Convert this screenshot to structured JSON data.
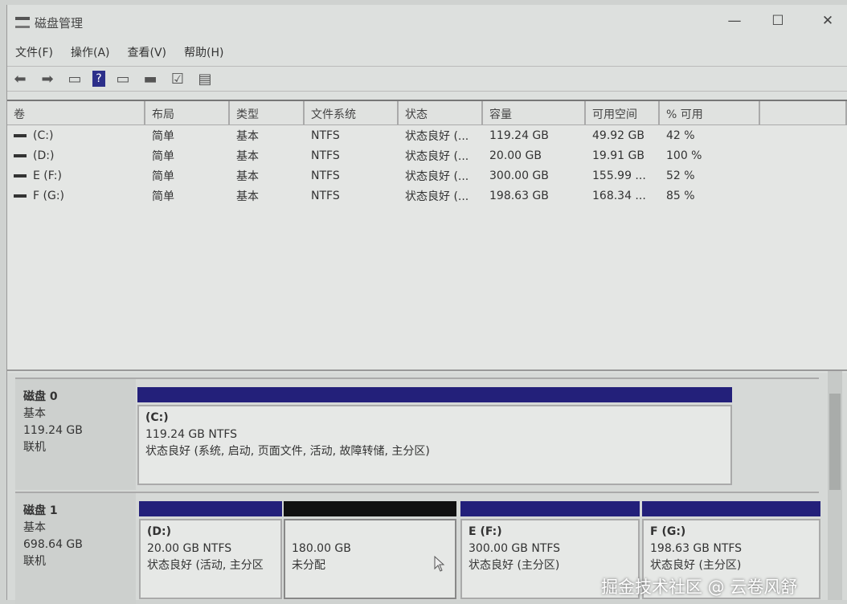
{
  "window": {
    "title": "磁盘管理",
    "controls": [
      "—",
      "☐",
      "✕"
    ]
  },
  "menu": [
    "文件(F)",
    "操作(A)",
    "查看(V)",
    "帮助(H)"
  ],
  "toolbar": {
    "icons": [
      "back-icon",
      "forward-icon",
      "console-tree-icon",
      "help-icon",
      "action-pane-icon",
      "disk-icon",
      "checklist-icon",
      "properties-icon"
    ]
  },
  "table": {
    "headers": [
      "卷",
      "布局",
      "类型",
      "文件系统",
      "状态",
      "容量",
      "可用空间",
      "% 可用",
      ""
    ],
    "rows": [
      [
        "(C:)",
        "简单",
        "基本",
        "NTFS",
        "状态良好 (...",
        "119.24 GB",
        "49.92 GB",
        "42 %"
      ],
      [
        "(D:)",
        "简单",
        "基本",
        "NTFS",
        "状态良好 (...",
        "20.00 GB",
        "19.91 GB",
        "100 %"
      ],
      [
        "E (F:)",
        "简单",
        "基本",
        "NTFS",
        "状态良好 (...",
        "300.00 GB",
        "155.99 ...",
        "52 %"
      ],
      [
        "F (G:)",
        "简单",
        "基本",
        "NTFS",
        "状态良好 (...",
        "198.63 GB",
        "168.34 ...",
        "85 %"
      ]
    ]
  },
  "disks": [
    {
      "name": "磁盘 0",
      "type": "基本",
      "size": "119.24 GB",
      "status": "联机",
      "partitions": [
        {
          "name": "(C:)",
          "size": "119.24 GB NTFS",
          "status": "状态良好 (系统, 启动, 页面文件, 活动, 故障转储, 主分区)"
        }
      ]
    },
    {
      "name": "磁盘 1",
      "type": "基本",
      "size": "698.64 GB",
      "status": "联机",
      "partitions": [
        {
          "name": "(D:)",
          "size": "20.00 GB NTFS",
          "status": "状态良好 (活动, 主分区"
        },
        {
          "name": "",
          "size": "180.00 GB",
          "status": "未分配"
        },
        {
          "name": "E  (F:)",
          "size": "300.00 GB NTFS",
          "status": "状态良好 (主分区)"
        },
        {
          "name": "F  (G:)",
          "size": "198.63 GB NTFS",
          "status": "状态良好 (主分区)"
        }
      ]
    }
  ],
  "colors": {
    "primary_partition": "#23207a",
    "unallocated": "#111111"
  },
  "watermark": "掘金技术社区 @ 云卷风舒"
}
